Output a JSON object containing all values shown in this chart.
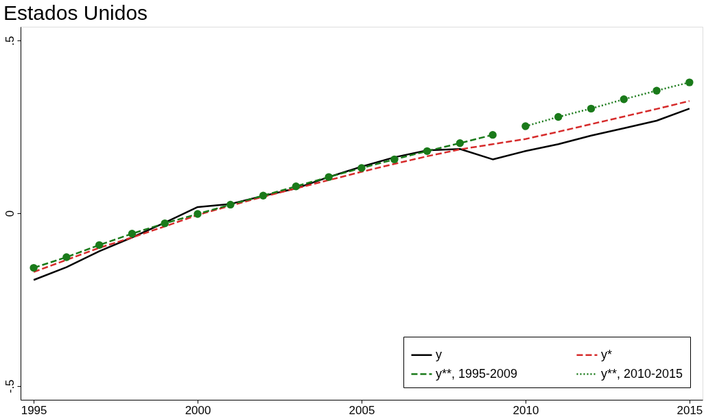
{
  "chart_data": {
    "type": "line",
    "title": "Estados Unidos",
    "xlim": [
      1994.6,
      2015.4
    ],
    "xticks": [
      1995,
      2000,
      2005,
      2010,
      2015
    ],
    "ylim": [
      -0.54,
      0.54
    ],
    "yticks": [
      {
        "value": -0.5,
        "label": "-.5"
      },
      {
        "value": 0,
        "label": "0"
      },
      {
        "value": 0.5,
        "label": ".5"
      }
    ],
    "grid": false,
    "legend": "bottom right",
    "series": [
      {
        "name": "y",
        "color": "#000000",
        "line_style": "solid",
        "marker": "none",
        "x": [
          1995,
          1996,
          1997,
          1998,
          1999,
          2000,
          2001,
          2002,
          2003,
          2004,
          2005,
          2006,
          2007,
          2008,
          2009,
          2010,
          2011,
          2012,
          2013,
          2014,
          2015
        ],
        "values": [
          -0.193,
          -0.156,
          -0.11,
          -0.07,
          -0.027,
          0.018,
          0.027,
          0.05,
          0.072,
          0.105,
          0.135,
          0.162,
          0.182,
          0.186,
          0.156,
          0.18,
          0.2,
          0.225,
          0.246,
          0.268,
          0.303
        ]
      },
      {
        "name": "y*",
        "color": "#d62b2b",
        "line_style": "dashed",
        "marker": "none",
        "x": [
          1995,
          1996,
          1997,
          1998,
          1999,
          2000,
          2001,
          2002,
          2003,
          2004,
          2005,
          2006,
          2007,
          2008,
          2009,
          2010,
          2011,
          2012,
          2013,
          2014,
          2015
        ],
        "values": [
          -0.17,
          -0.135,
          -0.1,
          -0.07,
          -0.038,
          -0.005,
          0.022,
          0.048,
          0.072,
          0.096,
          0.12,
          0.143,
          0.165,
          0.185,
          0.2,
          0.215,
          0.236,
          0.258,
          0.28,
          0.302,
          0.325
        ]
      },
      {
        "name": "y**, 1995-2009",
        "color": "#1a7a1a",
        "line_style": "dashed",
        "marker": "circle",
        "x": [
          1995,
          1996,
          1997,
          1998,
          1999,
          2000,
          2001,
          2002,
          2003,
          2004,
          2005,
          2006,
          2007,
          2008,
          2009
        ],
        "values": [
          -0.158,
          -0.127,
          -0.092,
          -0.059,
          -0.029,
          -0.002,
          0.025,
          0.051,
          0.078,
          0.105,
          0.131,
          0.156,
          0.18,
          0.203,
          0.227
        ]
      },
      {
        "name": "y**, 2010-2015",
        "color": "#1a7a1a",
        "line_style": "dotted",
        "marker": "circle",
        "x": [
          2010,
          2011,
          2012,
          2013,
          2014,
          2015
        ],
        "values": [
          0.252,
          0.279,
          0.303,
          0.33,
          0.355,
          0.379
        ]
      }
    ]
  }
}
